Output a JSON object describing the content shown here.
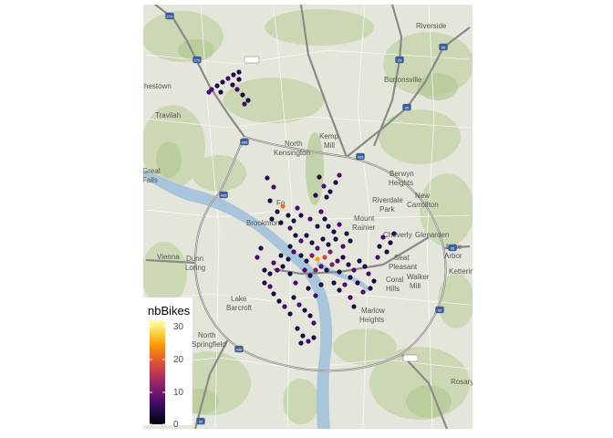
{
  "map": {
    "place_labels": [
      {
        "text": "Riverside",
        "pos": [
          456,
          31
        ]
      },
      {
        "text": "Burtonsville",
        "pos": [
          421,
          90
        ]
      },
      {
        "text": "hestown",
        "pos": [
          158,
          97
        ]
      },
      {
        "text": "Travilah",
        "pos": [
          170,
          129
        ]
      },
      {
        "text": "North",
        "pos": [
          312,
          160
        ]
      },
      {
        "text": "Kensington",
        "pos": [
          300,
          170
        ]
      },
      {
        "text": "Kemp",
        "pos": [
          350,
          152
        ]
      },
      {
        "text": "Mill",
        "pos": [
          355,
          162
        ]
      },
      {
        "text": "Great",
        "pos": [
          156,
          190
        ]
      },
      {
        "text": "Falls",
        "pos": [
          156,
          200
        ]
      },
      {
        "text": "Berwyn",
        "pos": [
          427,
          193
        ]
      },
      {
        "text": "Heights",
        "pos": [
          426,
          203
        ]
      },
      {
        "text": "New",
        "pos": [
          455,
          217
        ]
      },
      {
        "text": "Riverdale",
        "pos": [
          408,
          222
        ]
      },
      {
        "text": "Carrollton",
        "pos": [
          446,
          227
        ]
      },
      {
        "text": "Park",
        "pos": [
          416,
          232
        ]
      },
      {
        "text": "Mount",
        "pos": [
          388,
          242
        ]
      },
      {
        "text": "Brookmont",
        "pos": [
          270,
          247
        ]
      },
      {
        "text": "Rainier",
        "pos": [
          386,
          252
        ]
      },
      {
        "text": "Cheverly",
        "pos": [
          420,
          260
        ]
      },
      {
        "text": "Glenarden",
        "pos": [
          455,
          260
        ]
      },
      {
        "text": "Lake",
        "pos": [
          489,
          273
        ]
      },
      {
        "text": "Vienna",
        "pos": [
          172,
          284
        ]
      },
      {
        "text": "Dunn",
        "pos": [
          204,
          286
        ]
      },
      {
        "text": "Seat",
        "pos": [
          432,
          285
        ]
      },
      {
        "text": "Arbor",
        "pos": [
          487,
          283
        ]
      },
      {
        "text": "Loring",
        "pos": [
          203,
          296
        ]
      },
      {
        "text": "Pleasant",
        "pos": [
          426,
          295
        ]
      },
      {
        "text": "Ketterin",
        "pos": [
          492,
          300
        ]
      },
      {
        "text": "Walker",
        "pos": [
          446,
          306
        ]
      },
      {
        "text": "Coral",
        "pos": [
          423,
          309
        ]
      },
      {
        "text": "Mill",
        "pos": [
          449,
          316
        ]
      },
      {
        "text": "Hills",
        "pos": [
          423,
          319
        ]
      },
      {
        "text": "Lake",
        "pos": [
          253,
          330
        ]
      },
      {
        "text": "Barcroft",
        "pos": [
          248,
          340
        ]
      },
      {
        "text": "Marlow",
        "pos": [
          396,
          343
        ]
      },
      {
        "text": "Heights",
        "pos": [
          394,
          353
        ]
      },
      {
        "text": "North",
        "pos": [
          217,
          370
        ]
      },
      {
        "text": "Springfield",
        "pos": [
          210,
          380
        ]
      },
      {
        "text": "Rosaryv",
        "pos": [
          494,
          421
        ]
      },
      {
        "text": "Fo",
        "pos": [
          303,
          225
        ]
      }
    ],
    "shields": [
      {
        "text": "270",
        "pos": [
          186,
          18
        ]
      },
      {
        "text": "MD 200",
        "pos": [
          276,
          66
        ]
      },
      {
        "text": "29",
        "pos": [
          438,
          66
        ]
      },
      {
        "text": "95",
        "pos": [
          486,
          52
        ]
      },
      {
        "text": "270",
        "pos": [
          216,
          66
        ]
      },
      {
        "text": "95",
        "pos": [
          446,
          118
        ]
      },
      {
        "text": "495",
        "pos": [
          268,
          156
        ]
      },
      {
        "text": "495",
        "pos": [
          395,
          172
        ]
      },
      {
        "text": "495",
        "pos": [
          245,
          214
        ]
      },
      {
        "text": "95",
        "pos": [
          496,
          272
        ]
      },
      {
        "text": "95",
        "pos": [
          482,
          340
        ]
      },
      {
        "text": "MD 5",
        "pos": [
          450,
          393
        ]
      },
      {
        "text": "495",
        "pos": [
          262,
          383
        ]
      },
      {
        "text": "95",
        "pos": [
          220,
          462
        ]
      }
    ]
  },
  "legend": {
    "title": "nbBikes",
    "ticks": [
      "30",
      "20",
      "10",
      "0"
    ],
    "colors": [
      "#000004",
      "#1b0c41",
      "#4a0c6b",
      "#781c6d",
      "#a52c60",
      "#cf4446",
      "#ed6925",
      "#fb9b06",
      "#f7d13d",
      "#fcffa4"
    ]
  },
  "stations": {
    "colors": {
      "low": "#1b0c41",
      "mid": "#4a0c6b",
      "mid2": "#781c6d",
      "warm": "#cf4446",
      "hot": "#ed6925",
      "peak": "#fb9b06"
    },
    "points": [
      [
        232,
        98,
        3
      ],
      [
        238,
        94,
        3
      ],
      [
        244,
        90,
        3
      ],
      [
        250,
        86,
        3
      ],
      [
        256,
        82,
        3
      ],
      [
        262,
        79,
        3
      ],
      [
        229,
        101,
        3
      ],
      [
        242,
        101,
        3
      ],
      [
        255,
        93,
        3
      ],
      [
        260,
        98,
        3
      ],
      [
        266,
        104,
        3
      ],
      [
        272,
        110,
        3
      ],
      [
        268,
        114,
        3
      ],
      [
        262,
        87,
        3
      ],
      [
        293,
        195,
        3
      ],
      [
        300,
        205,
        3
      ],
      [
        296,
        220,
        3
      ],
      [
        304,
        232,
        3
      ],
      [
        310,
        226,
        8
      ],
      [
        316,
        236,
        3
      ],
      [
        322,
        242,
        3
      ],
      [
        318,
        250,
        3
      ],
      [
        308,
        244,
        3
      ],
      [
        298,
        240,
        3
      ],
      [
        326,
        228,
        3
      ],
      [
        330,
        236,
        3
      ],
      [
        350,
        194,
        3
      ],
      [
        355,
        204,
        3
      ],
      [
        362,
        210,
        3
      ],
      [
        368,
        200,
        3
      ],
      [
        372,
        192,
        3
      ],
      [
        358,
        216,
        3
      ],
      [
        346,
        214,
        3
      ],
      [
        340,
        240,
        3
      ],
      [
        348,
        248,
        3
      ],
      [
        356,
        240,
        3
      ],
      [
        352,
        232,
        3
      ],
      [
        360,
        248,
        3
      ],
      [
        366,
        254,
        3
      ],
      [
        372,
        246,
        3
      ],
      [
        380,
        256,
        3
      ],
      [
        384,
        264,
        3
      ],
      [
        376,
        270,
        3
      ],
      [
        368,
        262,
        3
      ],
      [
        324,
        258,
        3
      ],
      [
        330,
        264,
        3
      ],
      [
        336,
        258,
        3
      ],
      [
        342,
        266,
        3
      ],
      [
        348,
        272,
        3
      ],
      [
        354,
        262,
        3
      ],
      [
        360,
        268,
        3
      ],
      [
        362,
        276,
        5
      ],
      [
        356,
        282,
        7
      ],
      [
        348,
        284,
        9
      ],
      [
        342,
        280,
        6
      ],
      [
        336,
        286,
        3
      ],
      [
        330,
        280,
        3
      ],
      [
        322,
        276,
        3
      ],
      [
        316,
        284,
        3
      ],
      [
        310,
        292,
        3
      ],
      [
        304,
        296,
        3
      ],
      [
        296,
        300,
        3
      ],
      [
        290,
        296,
        3
      ],
      [
        300,
        288,
        3
      ],
      [
        308,
        280,
        3
      ],
      [
        318,
        270,
        3
      ],
      [
        334,
        296,
        3
      ],
      [
        340,
        302,
        3
      ],
      [
        346,
        296,
        5
      ],
      [
        352,
        292,
        4
      ],
      [
        358,
        296,
        3
      ],
      [
        364,
        290,
        5
      ],
      [
        370,
        286,
        3
      ],
      [
        376,
        282,
        3
      ],
      [
        382,
        290,
        3
      ],
      [
        388,
        296,
        3
      ],
      [
        394,
        286,
        3
      ],
      [
        400,
        292,
        3
      ],
      [
        404,
        300,
        3
      ],
      [
        410,
        308,
        3
      ],
      [
        406,
        316,
        3
      ],
      [
        398,
        320,
        3
      ],
      [
        392,
        310,
        3
      ],
      [
        384,
        304,
        3
      ],
      [
        378,
        312,
        3
      ],
      [
        372,
        318,
        3
      ],
      [
        366,
        310,
        3
      ],
      [
        296,
        314,
        3
      ],
      [
        300,
        322,
        3
      ],
      [
        306,
        330,
        3
      ],
      [
        312,
        336,
        3
      ],
      [
        318,
        344,
        3
      ],
      [
        322,
        326,
        3
      ],
      [
        328,
        334,
        3
      ],
      [
        334,
        340,
        3
      ],
      [
        340,
        346,
        3
      ],
      [
        344,
        354,
        3
      ],
      [
        326,
        360,
        3
      ],
      [
        332,
        368,
        3
      ],
      [
        338,
        374,
        3
      ],
      [
        344,
        370,
        3
      ],
      [
        330,
        376,
        3
      ],
      [
        420,
        260,
        3
      ],
      [
        428,
        266,
        3
      ],
      [
        424,
        276,
        3
      ],
      [
        414,
        282,
        3
      ],
      [
        432,
        256,
        3
      ],
      [
        416,
        270,
        3
      ],
      [
        384,
        326,
        3
      ],
      [
        388,
        336,
        3
      ],
      [
        286,
        272,
        3
      ],
      [
        282,
        282,
        3
      ],
      [
        290,
        310,
        3
      ],
      [
        318,
        300,
        3
      ],
      [
        324,
        310,
        3
      ],
      [
        372,
        298,
        3
      ],
      [
        338,
        316,
        3
      ],
      [
        346,
        324,
        3
      ],
      [
        352,
        312,
        3
      ]
    ]
  }
}
